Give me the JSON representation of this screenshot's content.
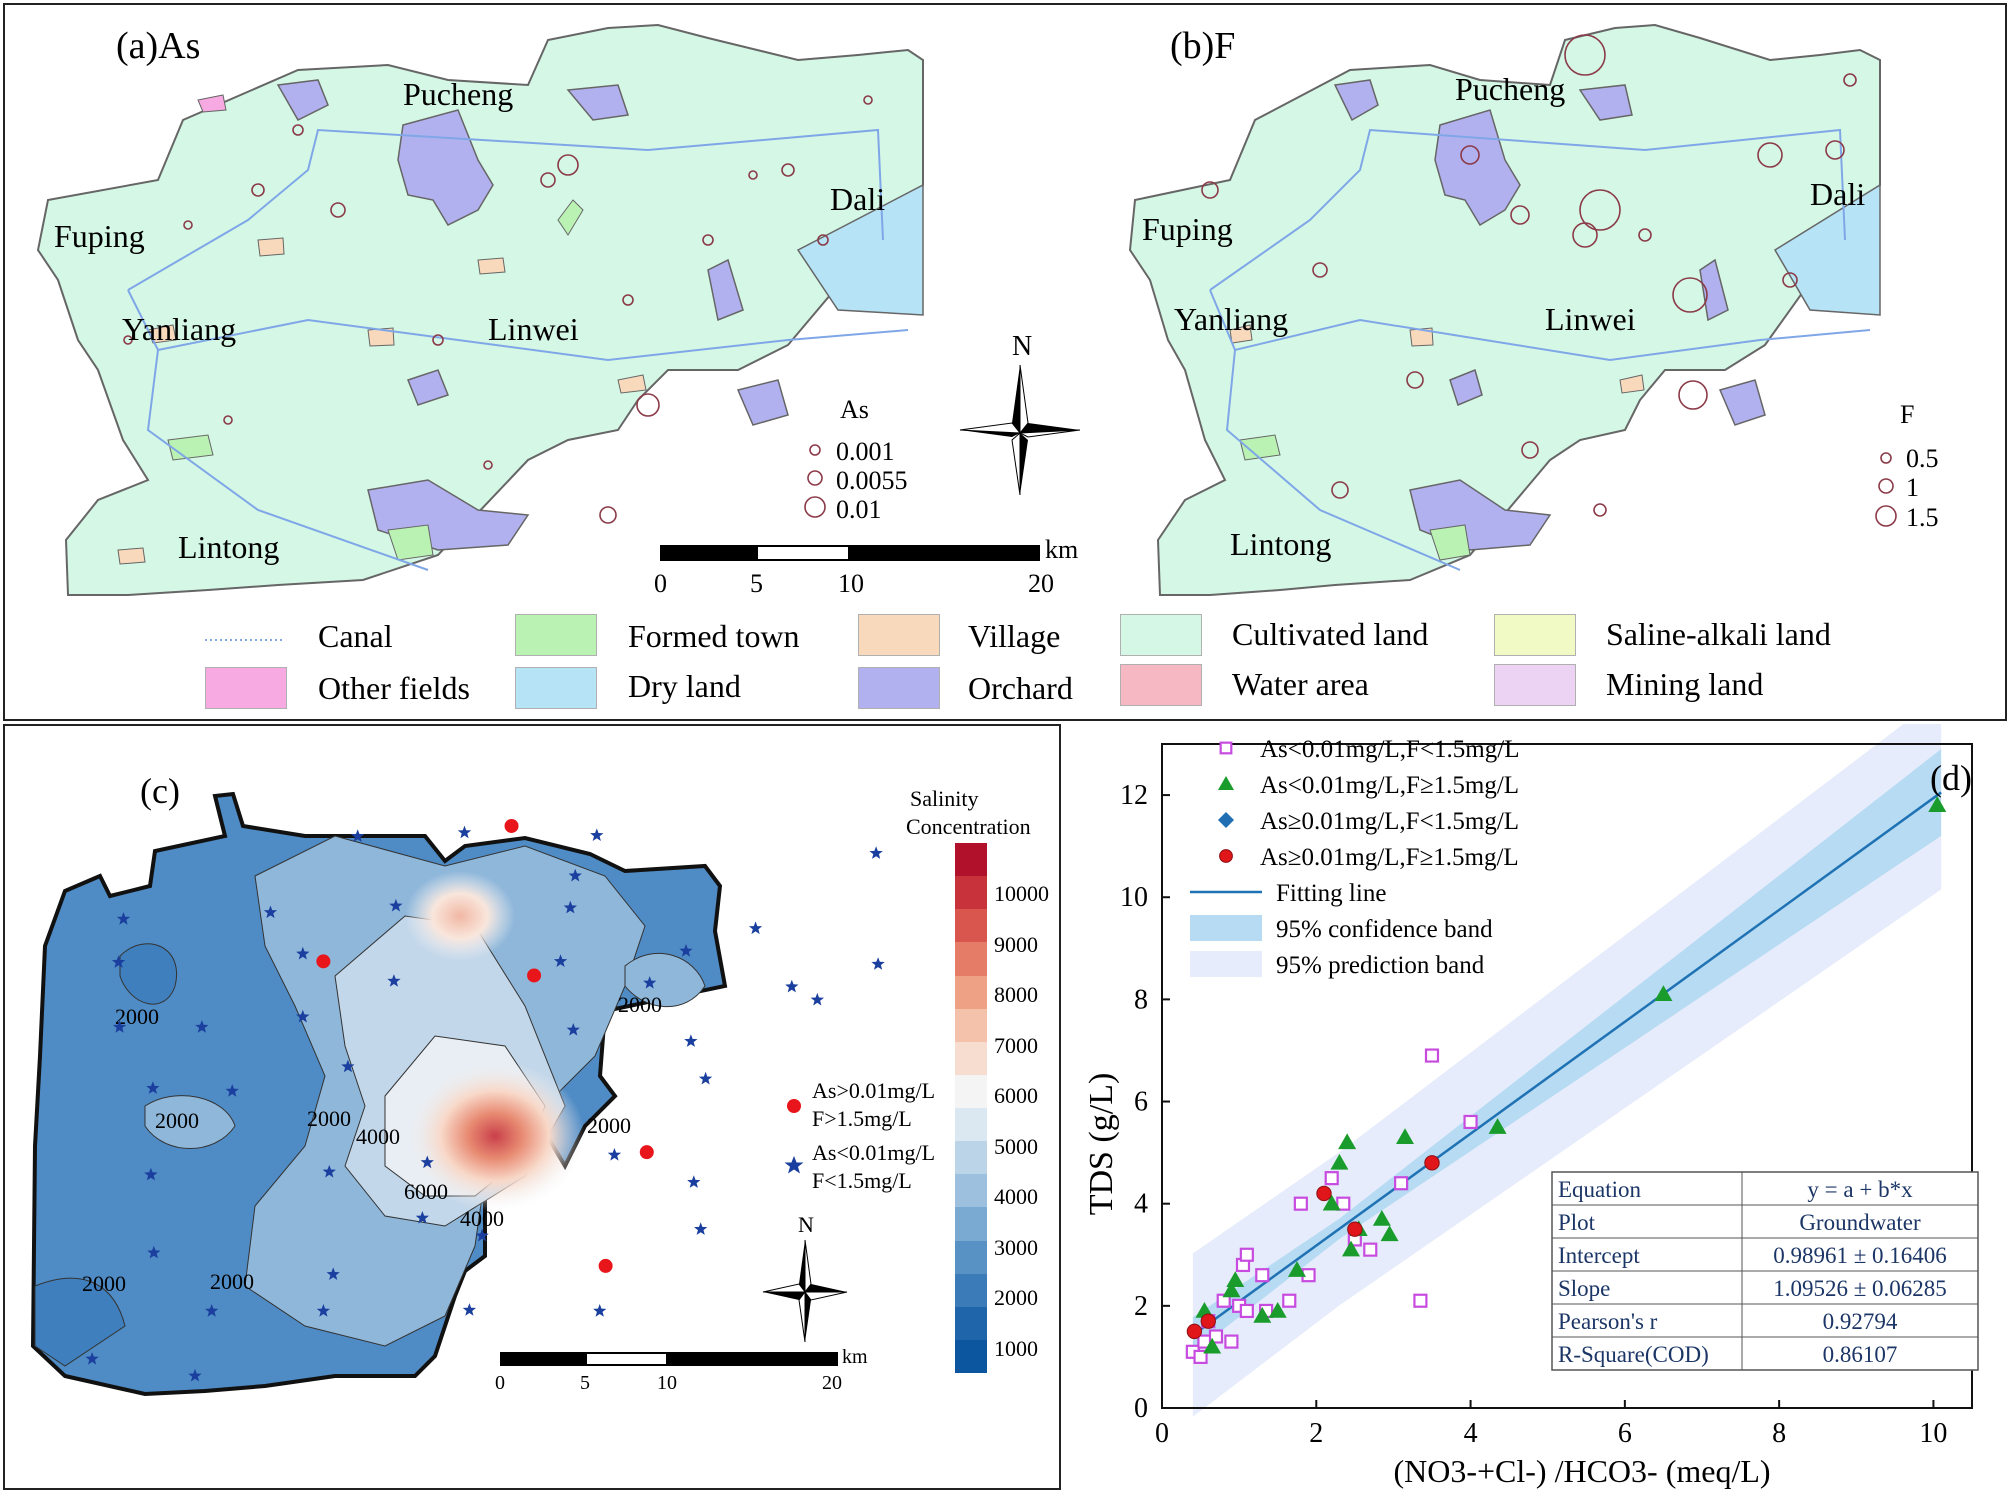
{
  "panel_a": {
    "title": "(a)As",
    "places": [
      "Pucheng",
      "Dali",
      "Fuping",
      "Yanliang",
      "Linwei",
      "Lintong"
    ],
    "size_legend_title": "As",
    "size_legend_values": [
      "0.001",
      "0.0055",
      "0.01"
    ]
  },
  "panel_b": {
    "title": "(b)F",
    "places": [
      "Pucheng",
      "Dali",
      "Fuping",
      "Yanliang",
      "Linwei",
      "Lintong"
    ],
    "size_legend_title": "F",
    "size_legend_values": [
      "0.5",
      "1",
      "1.5"
    ]
  },
  "north_label": "N",
  "scalebar": {
    "unit": "km",
    "ticks": [
      "0",
      "5",
      "10",
      "20"
    ]
  },
  "landuse_legend": [
    {
      "label": "Canal",
      "color": "#7fa7e8"
    },
    {
      "label": "Formed town",
      "color": "#b9f2b3"
    },
    {
      "label": "Village",
      "color": "#f8d9bc"
    },
    {
      "label": "Cultivated land",
      "color": "#d5f7e6"
    },
    {
      "label": "Saline-alkali land",
      "color": "#f1f9c4"
    },
    {
      "label": "Other fields",
      "color": "#f7a9e1"
    },
    {
      "label": "Dry land",
      "color": "#b6e3f6"
    },
    {
      "label": "Orchard",
      "color": "#b2b1ef"
    },
    {
      "label": "Water area",
      "color": "#f6b8c2"
    },
    {
      "label": "Mining land",
      "color": "#ecd3f4"
    }
  ],
  "panel_c": {
    "title": "(c)",
    "colorbar_title": [
      "Salinity",
      "Concentration"
    ],
    "colorbar_ticks": [
      "10000",
      "9000",
      "8000",
      "7000",
      "6000",
      "5000",
      "4000",
      "3000",
      "2000",
      "1000"
    ],
    "contour_labels": [
      "2000",
      "2000",
      "2000",
      "2000",
      "2000",
      "2000",
      "2000",
      "4000",
      "4000",
      "6000"
    ],
    "legend": [
      {
        "lines": [
          "As>0.01mg/L",
          "F>1.5mg/L"
        ],
        "color": "#e8151b"
      },
      {
        "lines": [
          "As<0.01mg/L",
          "F<1.5mg/L"
        ],
        "color": "#1b3f9e"
      }
    ]
  },
  "chart_data": {
    "type": "scatter",
    "title": "(d)",
    "xlabel": "(NO3-+Cl-) /HCO3- (meq/L)",
    "ylabel": "TDS (g/L)",
    "xlim": [
      0,
      10.5
    ],
    "ylim": [
      0,
      13
    ],
    "xticks": [
      "0",
      "2",
      "4",
      "6",
      "8",
      "10"
    ],
    "yticks": [
      "0",
      "2",
      "4",
      "6",
      "8",
      "10",
      "12"
    ],
    "legend_entries": [
      "As<0.01mg/L,F<1.5mg/L",
      "As<0.01mg/L,F≥1.5mg/L",
      "As≥0.01mg/L,F<1.5mg/L",
      "As≥0.01mg/L,F≥1.5mg/L",
      "Fitting line",
      "95% confidence band",
      "95% prediction band"
    ],
    "series": [
      {
        "name": "As<0.01mg/L,F<1.5mg/L",
        "marker": "open-square",
        "color": "#c84be0",
        "points": [
          [
            0.4,
            1.1
          ],
          [
            0.5,
            1.0
          ],
          [
            0.55,
            1.3
          ],
          [
            0.6,
            1.7
          ],
          [
            0.7,
            1.4
          ],
          [
            0.8,
            2.1
          ],
          [
            0.9,
            1.3
          ],
          [
            1.0,
            2.0
          ],
          [
            1.05,
            2.8
          ],
          [
            1.1,
            3.0
          ],
          [
            1.1,
            1.9
          ],
          [
            1.3,
            2.6
          ],
          [
            1.35,
            1.9
          ],
          [
            1.65,
            2.1
          ],
          [
            1.8,
            4.0
          ],
          [
            1.9,
            2.6
          ],
          [
            2.2,
            4.5
          ],
          [
            2.35,
            4.0
          ],
          [
            2.5,
            3.3
          ],
          [
            2.7,
            3.1
          ],
          [
            3.1,
            4.4
          ],
          [
            3.35,
            2.1
          ],
          [
            3.5,
            6.9
          ],
          [
            4.0,
            5.6
          ]
        ]
      },
      {
        "name": "As<0.01mg/L,F≥1.5mg/L",
        "marker": "triangle",
        "color": "#1a9c2c",
        "points": [
          [
            0.55,
            1.9
          ],
          [
            0.65,
            1.2
          ],
          [
            0.9,
            2.3
          ],
          [
            0.95,
            2.5
          ],
          [
            1.3,
            1.8
          ],
          [
            1.5,
            1.9
          ],
          [
            1.75,
            2.7
          ],
          [
            2.2,
            4.0
          ],
          [
            2.3,
            4.8
          ],
          [
            2.4,
            5.2
          ],
          [
            2.45,
            3.1
          ],
          [
            2.55,
            3.5
          ],
          [
            2.85,
            3.7
          ],
          [
            2.95,
            3.4
          ],
          [
            3.15,
            5.3
          ],
          [
            4.35,
            5.5
          ],
          [
            6.5,
            8.1
          ],
          [
            10.05,
            11.8
          ]
        ]
      },
      {
        "name": "As≥0.01mg/L,F<1.5mg/L",
        "marker": "diamond",
        "color": "#1f6fb2",
        "points": []
      },
      {
        "name": "As≥0.01mg/L,F≥1.5mg/L",
        "marker": "sphere",
        "color": "#e0161b",
        "points": [
          [
            0.42,
            1.5
          ],
          [
            0.6,
            1.7
          ],
          [
            2.1,
            4.2
          ],
          [
            2.5,
            3.5
          ],
          [
            3.5,
            4.8
          ]
        ]
      }
    ],
    "fit": {
      "intercept": 0.98961,
      "slope": 1.09526
    },
    "stats_table": [
      [
        "Equation",
        "y = a + b*x"
      ],
      [
        "Plot",
        "Groundwater"
      ],
      [
        "Intercept",
        "0.98961 ± 0.16406"
      ],
      [
        "Slope",
        "1.09526 ± 0.06285"
      ],
      [
        "Pearson's r",
        "0.92794"
      ],
      [
        "R-Square(COD)",
        "0.86107"
      ]
    ]
  }
}
